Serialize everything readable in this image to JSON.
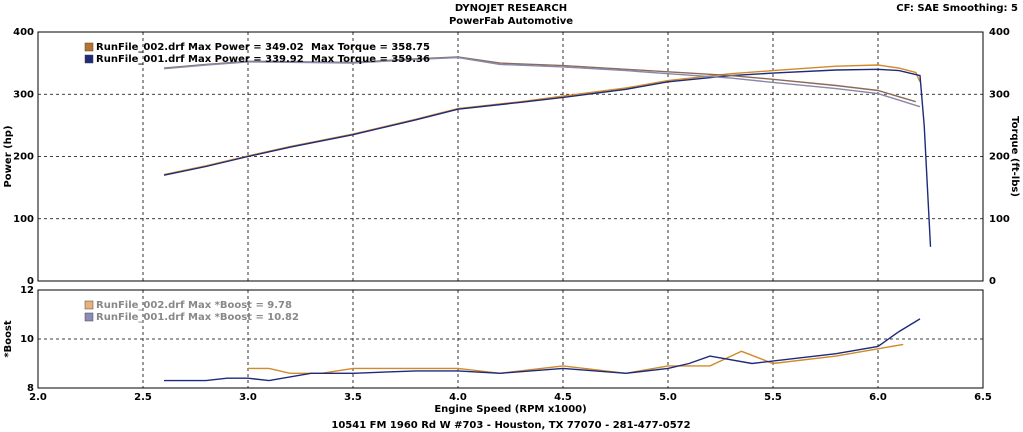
{
  "header": {
    "title": "DYNOJET RESEARCH",
    "subtitle": "PowerFab Automotive",
    "settings": "CF: SAE  Smoothing: 5"
  },
  "footer": "10541 FM 1960 Rd W #703 - Houston, TX 77070 - 281-477-0572",
  "chart_data": [
    {
      "type": "line",
      "ylabel": "Power (hp)",
      "y2label": "Torque (ft-lbs)",
      "xlim": [
        2.0,
        6.5
      ],
      "ylim": [
        0,
        400
      ],
      "y2lim": [
        0,
        400
      ],
      "xticks": [
        {
          "value": 2.0,
          "label": "2.0"
        },
        2.5,
        {
          "value": 3.0,
          "label": "3.0"
        },
        3.5,
        {
          "value": 4.0,
          "label": "4.0"
        },
        4.5,
        {
          "value": 5.0,
          "label": "5.0"
        },
        5.5,
        {
          "value": 6.0,
          "label": "6.0"
        },
        6.5
      ],
      "yticks": [
        0,
        100,
        200,
        300,
        400
      ],
      "y2ticks": [
        0,
        100,
        200,
        300,
        400
      ],
      "grid": true,
      "legend": [
        {
          "label": "RunFile_002.drf Max Power = 349.02",
          "label2": "Max Torque = 358.75",
          "color": "#b8732a"
        },
        {
          "label": "RunFile_001.drf Max Power = 339.92",
          "label2": "Max Torque = 359.36",
          "color": "#1e2a7a"
        }
      ],
      "series": [
        {
          "color": "#d08a2a",
          "x": [
            2.6,
            2.8,
            3.0,
            3.2,
            3.5,
            3.8,
            4.0,
            4.3,
            4.5,
            4.8,
            5.0,
            5.3,
            5.5,
            5.8,
            6.0,
            6.1,
            6.18,
            6.2
          ],
          "values": [
            171,
            185,
            201,
            216,
            236,
            260,
            277,
            288,
            297,
            310,
            322,
            333,
            338,
            345,
            347,
            342,
            335,
            320
          ]
        },
        {
          "color": "#1e2a7a",
          "x": [
            2.6,
            2.8,
            3.0,
            3.2,
            3.5,
            3.8,
            4.0,
            4.3,
            4.5,
            4.8,
            5.0,
            5.3,
            5.5,
            5.8,
            6.0,
            6.1,
            6.2,
            6.22,
            6.25
          ],
          "values": [
            170,
            184,
            200,
            215,
            235,
            259,
            276,
            287,
            295,
            308,
            320,
            330,
            334,
            339,
            340,
            338,
            330,
            250,
            55
          ]
        },
        {
          "color": "#8a6a5a",
          "axis": "y2",
          "x": [
            2.6,
            2.8,
            3.0,
            3.3,
            3.5,
            3.8,
            4.0,
            4.2,
            4.5,
            4.8,
            5.0,
            5.3,
            5.5,
            5.8,
            6.0,
            6.18
          ],
          "values": [
            342,
            348,
            353,
            352,
            351,
            357,
            360,
            350,
            346,
            340,
            336,
            330,
            324,
            314,
            306,
            288
          ]
        },
        {
          "color": "#8888aa",
          "axis": "y2",
          "x": [
            2.6,
            2.8,
            3.0,
            3.3,
            3.5,
            3.8,
            4.0,
            4.2,
            4.5,
            4.8,
            5.0,
            5.3,
            5.5,
            5.8,
            6.0,
            6.2
          ],
          "values": [
            341,
            347,
            352,
            351,
            350,
            356,
            359,
            348,
            344,
            338,
            333,
            326,
            319,
            309,
            301,
            280
          ]
        }
      ]
    },
    {
      "type": "line",
      "xlabel": "Engine Speed (RPM x1000)",
      "ylabel": "*Boost",
      "xlim": [
        2.0,
        6.5
      ],
      "ylim": [
        8,
        12
      ],
      "xticks": [
        {
          "value": 2.0,
          "label": "2.0"
        },
        2.5,
        {
          "value": 3.0,
          "label": "3.0"
        },
        3.5,
        {
          "value": 4.0,
          "label": "4.0"
        },
        4.5,
        {
          "value": 5.0,
          "label": "5.0"
        },
        5.5,
        {
          "value": 6.0,
          "label": "6.0"
        },
        6.5
      ],
      "yticks": [
        8,
        10,
        12
      ],
      "grid": true,
      "legend": [
        {
          "label": "RunFile_002.drf Max *Boost = 9.78",
          "color": "#e8b27a"
        },
        {
          "label": "RunFile_001.drf Max *Boost = 10.82",
          "color": "#8c8cb8"
        }
      ],
      "series": [
        {
          "color": "#d08a2a",
          "x": [
            3.0,
            3.1,
            3.2,
            3.35,
            3.5,
            3.7,
            4.0,
            4.2,
            4.5,
            4.8,
            5.0,
            5.2,
            5.35,
            5.5,
            5.8,
            6.0,
            6.12
          ],
          "values": [
            8.8,
            8.8,
            8.6,
            8.6,
            8.8,
            8.8,
            8.8,
            8.6,
            8.9,
            8.6,
            8.9,
            8.9,
            9.5,
            9.0,
            9.3,
            9.6,
            9.78
          ]
        },
        {
          "color": "#1e2a7a",
          "x": [
            2.6,
            2.8,
            2.9,
            3.0,
            3.1,
            3.3,
            3.5,
            3.8,
            4.0,
            4.2,
            4.5,
            4.8,
            5.0,
            5.1,
            5.2,
            5.4,
            5.6,
            5.8,
            6.0,
            6.1,
            6.2
          ],
          "values": [
            8.3,
            8.3,
            8.4,
            8.4,
            8.3,
            8.6,
            8.6,
            8.7,
            8.7,
            8.6,
            8.8,
            8.6,
            8.8,
            9.0,
            9.3,
            9.0,
            9.2,
            9.4,
            9.7,
            10.3,
            10.82
          ]
        }
      ]
    }
  ]
}
